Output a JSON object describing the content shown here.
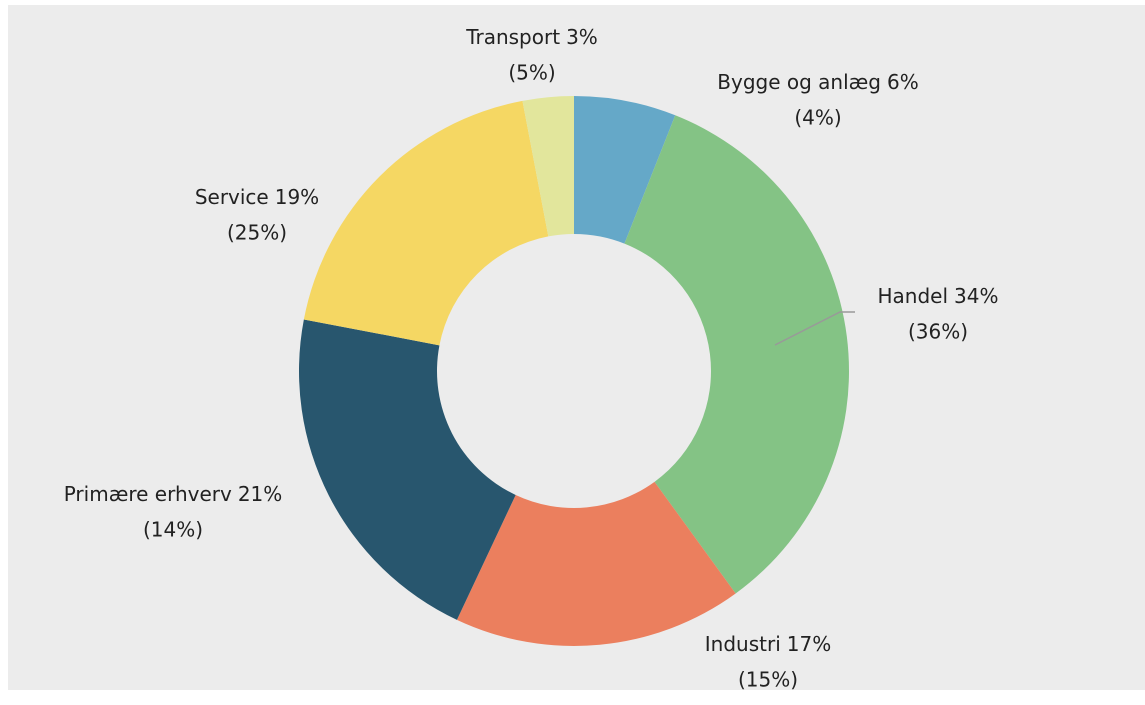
{
  "chart_data": {
    "type": "donut",
    "categories": [
      "Bygge og anlæg",
      "Handel",
      "Industri",
      "Primære erhverv",
      "Service",
      "Transport"
    ],
    "series": [
      {
        "values": [
          6,
          34,
          17,
          21,
          19,
          3
        ],
        "value_labels": [
          "6%",
          "34%",
          "17%",
          "21%",
          "19%",
          "3%"
        ],
        "colors": [
          "#65a8c8",
          "#84c385",
          "#eb7f5e",
          "#28566e",
          "#f5d763",
          "#e2e69c"
        ]
      },
      {
        "values": [
          4,
          36,
          15,
          14,
          25,
          5
        ],
        "value_labels": [
          "(4%)",
          "(36%)",
          "(15%)",
          "(14%)",
          "(25%)",
          "(5%)"
        ]
      }
    ]
  }
}
